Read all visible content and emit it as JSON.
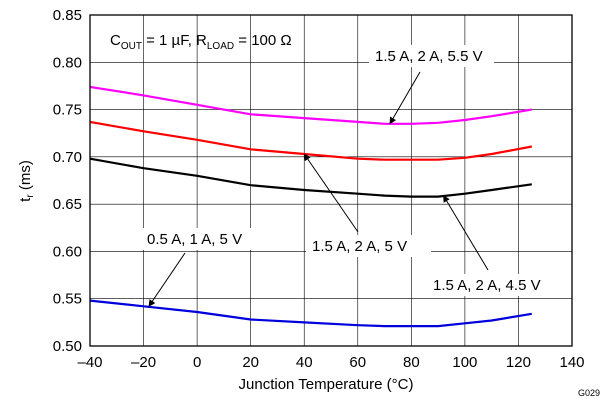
{
  "figure_id": "G029",
  "chart_data": {
    "type": "line",
    "title": "",
    "xlabel": "Junction Temperature (°C)",
    "ylabel": "tr (ms)",
    "xlim": [
      -40,
      140
    ],
    "ylim": [
      0.5,
      0.85
    ],
    "xticks": [
      -40,
      -20,
      0,
      20,
      40,
      60,
      80,
      100,
      120,
      140
    ],
    "yticks": [
      0.5,
      0.55,
      0.6,
      0.65,
      0.7,
      0.75,
      0.8,
      0.85
    ],
    "x_tick_labels": [
      "–40",
      "–20",
      "0",
      "20",
      "40",
      "60",
      "80",
      "100",
      "120",
      "140"
    ],
    "y_tick_labels": [
      "0.50",
      "0.55",
      "0.60",
      "0.65",
      "0.70",
      "0.75",
      "0.80",
      "0.85"
    ],
    "grid": true,
    "conditions": {
      "prefix": "C",
      "sub1": "OUT",
      "mid": " = 1 µF,  R",
      "sub2": "LOAD",
      "suffix": " = 100 Ω"
    },
    "series": [
      {
        "label": "1.5 A, 2 A, 5.5 V",
        "color": "#ff00ff",
        "x": [
          -40,
          -20,
          0,
          20,
          40,
          60,
          70,
          80,
          90,
          100,
          110,
          125
        ],
        "y": [
          0.774,
          0.765,
          0.755,
          0.745,
          0.741,
          0.737,
          0.735,
          0.735,
          0.736,
          0.739,
          0.743,
          0.75
        ]
      },
      {
        "label": "1.5 A, 2 A, 5 V",
        "color": "#ff0000",
        "x": [
          -40,
          -20,
          0,
          20,
          40,
          60,
          70,
          80,
          90,
          100,
          110,
          125
        ],
        "y": [
          0.737,
          0.727,
          0.718,
          0.708,
          0.703,
          0.698,
          0.697,
          0.697,
          0.697,
          0.699,
          0.703,
          0.711
        ]
      },
      {
        "label": "1.5 A, 2 A, 4.5 V",
        "color": "#000000",
        "x": [
          -40,
          -20,
          0,
          20,
          40,
          60,
          70,
          80,
          90,
          100,
          110,
          125
        ],
        "y": [
          0.698,
          0.688,
          0.68,
          0.67,
          0.665,
          0.661,
          0.659,
          0.658,
          0.658,
          0.661,
          0.665,
          0.671
        ]
      },
      {
        "label": "0.5 A, 1 A, 5 V",
        "color": "#0000dd",
        "x": [
          -40,
          -20,
          0,
          20,
          40,
          60,
          70,
          80,
          90,
          100,
          110,
          125
        ],
        "y": [
          0.548,
          0.542,
          0.536,
          0.528,
          0.525,
          0.522,
          0.521,
          0.521,
          0.521,
          0.524,
          0.527,
          0.534
        ]
      }
    ]
  }
}
